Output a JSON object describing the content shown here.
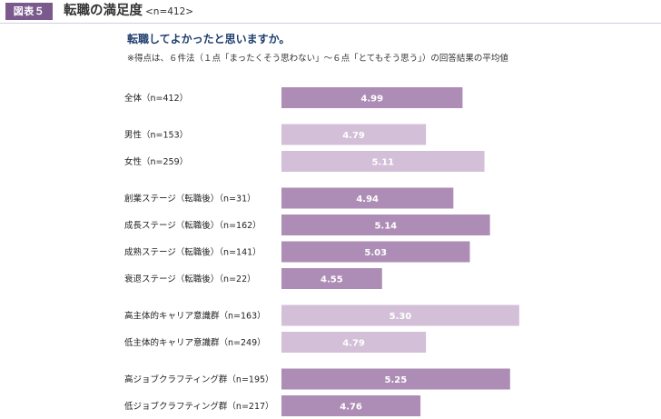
{
  "figure": {
    "badge": "図表５",
    "title": "転職の満足度",
    "sample": "<n=412>",
    "question": "転職してよかったと思いますか。",
    "note": "※得点は、６件法（１点「まったくそう思わない」〜６点「とてもそう思う」）の回答結果の平均値"
  },
  "colors": {
    "badge": "#7a5a8c",
    "bar_dark": "#ad8db5",
    "bar_light": "#d3bfd8",
    "question_text": "#1f3f6e"
  },
  "chart_data": {
    "type": "bar",
    "orientation": "horizontal",
    "xlim": [
      4.0,
      5.4
    ],
    "grid": false,
    "rows": [
      {
        "label": "全体（n=412）",
        "value": 4.99,
        "value_label": "4.99",
        "shade": "dark",
        "group": 0
      },
      {
        "label": "男性（n=153）",
        "value": 4.79,
        "value_label": "4.79",
        "shade": "light",
        "group": 1
      },
      {
        "label": "女性（n=259）",
        "value": 5.11,
        "value_label": "5.11",
        "shade": "light",
        "group": 1
      },
      {
        "label": "創業ステージ（転職後）（n=31）",
        "value": 4.94,
        "value_label": "4.94",
        "shade": "dark",
        "group": 2
      },
      {
        "label": "成長ステージ（転職後）（n=162）",
        "value": 5.14,
        "value_label": "5.14",
        "shade": "dark",
        "group": 2
      },
      {
        "label": "成熟ステージ（転職後）（n=141）",
        "value": 5.03,
        "value_label": "5.03",
        "shade": "dark",
        "group": 2
      },
      {
        "label": "衰退ステージ（転職後）（n=22）",
        "value": 4.55,
        "value_label": "4.55",
        "shade": "dark",
        "group": 2
      },
      {
        "label": "高主体的キャリア意識群（n=163）",
        "value": 5.3,
        "value_label": "5.30",
        "shade": "light",
        "group": 3
      },
      {
        "label": "低主体的キャリア意識群（n=249）",
        "value": 4.79,
        "value_label": "4.79",
        "shade": "light",
        "group": 3
      },
      {
        "label": "高ジョブクラフティング群（n=195）",
        "value": 5.25,
        "value_label": "5.25",
        "shade": "dark",
        "group": 4
      },
      {
        "label": "低ジョブクラフティング群（n=217）",
        "value": 4.76,
        "value_label": "4.76",
        "shade": "dark",
        "group": 4
      }
    ]
  }
}
